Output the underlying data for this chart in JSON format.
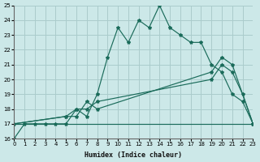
{
  "xlabel": "Humidex (Indice chaleur)",
  "bg_color": "#cce8e8",
  "grid_color": "#aacccc",
  "line_color": "#1a6b5a",
  "xlim": [
    0,
    23
  ],
  "ylim": [
    16,
    25
  ],
  "xticks": [
    0,
    1,
    2,
    3,
    4,
    5,
    6,
    7,
    8,
    9,
    10,
    11,
    12,
    13,
    14,
    15,
    16,
    17,
    18,
    19,
    20,
    21,
    22,
    23
  ],
  "yticks": [
    16,
    17,
    18,
    19,
    20,
    21,
    22,
    23,
    24,
    25
  ],
  "curve1_x": [
    0,
    1,
    2,
    3,
    4,
    5,
    6,
    7,
    8,
    9,
    10,
    11,
    12,
    13,
    14,
    15,
    16,
    17,
    18,
    19,
    20,
    21,
    22,
    23
  ],
  "curve1_y": [
    16,
    17,
    17,
    17,
    17,
    17,
    18,
    17.5,
    19,
    21.5,
    23.5,
    22.5,
    24,
    23.5,
    25,
    23.5,
    23,
    22.5,
    22.5,
    21,
    20.5,
    19,
    18.5,
    17
  ],
  "curve2_x": [
    0,
    5,
    6,
    7,
    8,
    19,
    20,
    21,
    23
  ],
  "curve2_y": [
    17,
    17.5,
    17.5,
    18.5,
    18,
    20.5,
    21.5,
    21,
    17
  ],
  "curve3_x": [
    0,
    5,
    6,
    7,
    8,
    19,
    20,
    21,
    22,
    23
  ],
  "curve3_y": [
    17,
    17.5,
    18,
    18,
    18.5,
    20,
    21,
    20.5,
    19,
    17
  ],
  "hline_y": 17,
  "hline_x_start": 0,
  "hline_x_end": 23
}
